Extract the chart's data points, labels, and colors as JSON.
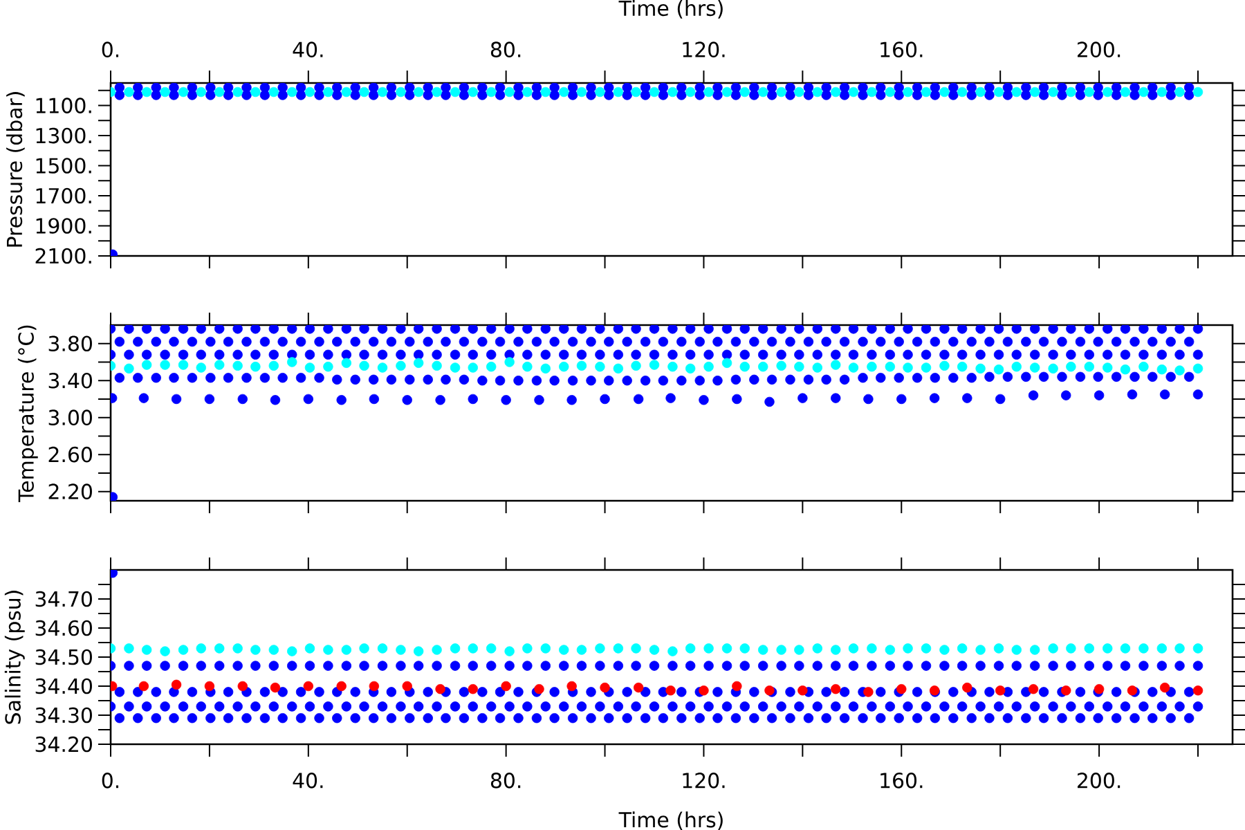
{
  "chart_data": [
    {
      "type": "scatter",
      "xlabel": "Time (hrs)",
      "ylabel": "Pressure (dbar)",
      "xlim": [
        0,
        227
      ],
      "xticks": [
        {
          "value": 0,
          "label": "0."
        },
        {
          "value": 20,
          "label": null
        },
        {
          "value": 40,
          "label": "40."
        },
        {
          "value": 60,
          "label": null
        },
        {
          "value": 80,
          "label": "80."
        },
        {
          "value": 100,
          "label": null
        },
        {
          "value": 120,
          "label": "120."
        },
        {
          "value": 140,
          "label": null
        },
        {
          "value": 160,
          "label": "160."
        },
        {
          "value": 180,
          "label": null
        },
        {
          "value": 200,
          "label": "200."
        },
        {
          "value": 220,
          "label": null
        }
      ],
      "ylim": [
        2100,
        950
      ],
      "yticks": [
        {
          "value": 1000,
          "label": null
        },
        {
          "value": 1100,
          "label": "1100."
        },
        {
          "value": 1200,
          "label": null
        },
        {
          "value": 1300,
          "label": "1300."
        },
        {
          "value": 1400,
          "label": null
        },
        {
          "value": 1500,
          "label": "1500."
        },
        {
          "value": 1600,
          "label": null
        },
        {
          "value": 1700,
          "label": "1700."
        },
        {
          "value": 1800,
          "label": null
        },
        {
          "value": 1900,
          "label": "1900."
        },
        {
          "value": 2000,
          "label": null
        },
        {
          "value": 2100,
          "label": "2100."
        }
      ],
      "marker": "circle",
      "series": [
        {
          "color": "#0000ff",
          "x": [
            0.4,
            1.8,
            5.5,
            9.2,
            12.8,
            16.5,
            20.2,
            23.8,
            27.5,
            31.2,
            34.8,
            38.5,
            42.2,
            45.8,
            49.5,
            53.2,
            56.8,
            60.5,
            64.2,
            67.8,
            71.5,
            75.2,
            78.8,
            82.5,
            86.2,
            89.8,
            93.5,
            97.2,
            100.8,
            104.5,
            108.2,
            111.8,
            115.5,
            119.2,
            122.8,
            126.5,
            130.2,
            133.8,
            137.5,
            141.2,
            144.8,
            148.5,
            152.2,
            155.8,
            159.5,
            163.2,
            166.8,
            170.5,
            174.2,
            177.8,
            181.5,
            185.2,
            188.8,
            192.5,
            196.2,
            199.8,
            203.5,
            207.2,
            210.8,
            214.5,
            218.2,
            1.8,
            5.5,
            9.2,
            12.8,
            16.5,
            20.2,
            23.8,
            27.5,
            31.2,
            34.8,
            38.5,
            42.2,
            45.8,
            49.5,
            53.2,
            56.8,
            60.5,
            64.2,
            67.8,
            71.5,
            75.2,
            78.8,
            82.5,
            86.2,
            89.8,
            93.5,
            97.2,
            100.8,
            104.5,
            108.2,
            111.8,
            115.5,
            119.2,
            122.8,
            126.5,
            130.2,
            133.8,
            137.5,
            141.2,
            144.8,
            148.5,
            152.2,
            155.8,
            159.5,
            163.2,
            166.8,
            170.5,
            174.2,
            177.8,
            181.5,
            185.2,
            188.8,
            192.5,
            196.2,
            199.8,
            203.5,
            207.2,
            210.8,
            214.5,
            218.2
          ],
          "values": [
            2090,
            980,
            980,
            980,
            980,
            980,
            980,
            980,
            980,
            980,
            980,
            980,
            980,
            980,
            980,
            980,
            980,
            980,
            980,
            980,
            980,
            980,
            980,
            980,
            980,
            980,
            980,
            980,
            980,
            980,
            980,
            980,
            980,
            980,
            980,
            980,
            980,
            980,
            980,
            980,
            980,
            980,
            980,
            980,
            980,
            980,
            980,
            980,
            980,
            980,
            980,
            980,
            980,
            980,
            980,
            980,
            980,
            980,
            980,
            980,
            980,
            1030,
            1030,
            1030,
            1030,
            1030,
            1030,
            1030,
            1030,
            1030,
            1030,
            1030,
            1030,
            1030,
            1030,
            1030,
            1030,
            1030,
            1030,
            1030,
            1030,
            1030,
            1030,
            1030,
            1030,
            1030,
            1030,
            1030,
            1030,
            1030,
            1030,
            1030,
            1030,
            1030,
            1030,
            1030,
            1030,
            1030,
            1030,
            1030,
            1030,
            1030,
            1030,
            1030,
            1030,
            1030,
            1030,
            1030,
            1030,
            1030,
            1030,
            1030,
            1030,
            1030,
            1030,
            1030,
            1030,
            1030,
            1030,
            1030,
            1030
          ]
        },
        {
          "color": "#00ffff",
          "x": [
            0,
            3.7,
            7.3,
            11,
            14.7,
            18.3,
            22,
            25.7,
            29.3,
            33,
            36.7,
            40.3,
            44,
            47.7,
            51.3,
            55,
            58.7,
            62.3,
            66,
            69.7,
            73.3,
            77,
            80.7,
            84.3,
            88,
            91.7,
            95.3,
            99,
            102.7,
            106.3,
            110,
            113.7,
            117.3,
            121,
            124.7,
            128.3,
            132,
            135.7,
            139.3,
            143,
            146.7,
            150.3,
            154,
            157.7,
            161.3,
            165,
            168.7,
            172.3,
            176,
            179.7,
            183.3,
            187,
            190.7,
            194.3,
            198,
            201.7,
            205.3,
            209,
            212.7,
            216.3,
            220
          ],
          "values": [
            1010,
            1010,
            1010,
            1010,
            1010,
            1010,
            1010,
            1010,
            1010,
            1010,
            1010,
            1010,
            1010,
            1010,
            1010,
            1010,
            1010,
            1010,
            1010,
            1010,
            1010,
            1010,
            1010,
            1010,
            1010,
            1010,
            1010,
            1010,
            1010,
            1010,
            1010,
            1010,
            1010,
            1010,
            1010,
            1010,
            1010,
            1010,
            1010,
            1010,
            1010,
            1010,
            1010,
            1010,
            1010,
            1010,
            1010,
            1010,
            1010,
            1010,
            1010,
            1010,
            1010,
            1010,
            1010,
            1010,
            1010,
            1010,
            1010,
            1010,
            1010
          ]
        }
      ]
    },
    {
      "type": "scatter",
      "ylabel": "Temperature (°C)",
      "tick_labels": "y",
      "xlim": [
        0,
        227
      ],
      "xticks": [
        0,
        20,
        40,
        60,
        80,
        100,
        120,
        140,
        160,
        180,
        200,
        220
      ],
      "ylim": [
        2.1,
        4.0
      ],
      "yticks": [
        {
          "value": 2.2,
          "label": "2.20"
        },
        {
          "value": 2.4,
          "label": null
        },
        {
          "value": 2.6,
          "label": "2.60"
        },
        {
          "value": 2.8,
          "label": null
        },
        {
          "value": 3.0,
          "label": "3.00"
        },
        {
          "value": 3.2,
          "label": null
        },
        {
          "value": 3.4,
          "label": "3.40"
        },
        {
          "value": 3.6,
          "label": null
        },
        {
          "value": 3.8,
          "label": "3.80"
        }
      ],
      "marker": "circle",
      "series": [
        {
          "color": "#0000ff",
          "x": [
            0.4,
            0.3,
            6.7,
            13.3,
            20,
            26.7,
            33.3,
            40,
            46.7,
            53.3,
            60,
            66.7,
            73.3,
            80,
            86.7,
            93.3,
            100,
            106.8,
            113.3,
            120,
            126.7,
            133.3,
            140,
            146.7,
            153.3,
            160,
            166.7,
            173.3,
            180,
            186.7,
            193.3,
            200,
            206.7,
            213.3,
            220,
            0,
            3.7,
            7.3,
            11,
            14.7,
            18.3,
            22,
            25.7,
            29.3,
            33,
            36.7,
            40.3,
            44,
            47.7,
            51.3,
            55,
            58.7,
            62.3,
            66,
            69.7,
            73.3,
            77,
            80.7,
            84.3,
            88,
            91.7,
            95.3,
            99,
            102.7,
            106.3,
            110,
            113.7,
            117.3,
            121,
            124.7,
            128.3,
            132,
            135.7,
            139.3,
            143,
            146.7,
            150.3,
            154,
            157.7,
            161.3,
            165,
            168.7,
            172.3,
            176,
            179.7,
            183.3,
            187,
            190.7,
            194.3,
            198,
            201.7,
            205.3,
            209,
            212.7,
            216.3,
            220,
            1.8,
            5.5,
            9.2,
            12.8,
            16.5,
            20.2,
            23.8,
            27.5,
            31.2,
            34.8,
            38.5,
            42.2,
            45.8,
            49.5,
            53.2,
            56.8,
            60.5,
            64.2,
            67.8,
            71.5,
            75.2,
            78.8,
            82.5,
            86.2,
            89.8,
            93.5,
            97.2,
            100.8,
            104.5,
            108.2,
            111.8,
            115.5,
            119.2,
            122.8,
            126.5,
            130.2,
            133.8,
            137.5,
            141.2,
            144.8,
            148.5,
            152.2,
            155.8,
            159.5,
            163.2,
            166.8,
            170.5,
            174.2,
            177.8,
            181.5,
            185.2,
            188.8,
            192.5,
            196.2,
            199.8,
            203.5,
            207.2,
            210.8,
            214.5,
            218.2,
            1.8,
            5.5,
            9.2,
            12.8,
            16.5,
            20.2,
            23.8,
            27.5,
            31.2,
            34.8,
            38.5,
            42.2,
            45.8,
            49.5,
            53.2,
            56.8,
            60.5,
            64.2,
            67.8,
            71.5,
            75.2,
            78.8,
            82.5,
            86.2,
            89.8,
            93.5,
            97.2,
            100.8,
            104.5,
            108.2,
            111.8,
            115.5,
            119.2,
            122.8,
            126.5,
            130.2,
            133.8,
            137.5,
            141.2,
            144.8,
            148.5,
            152.2,
            155.8,
            159.5,
            163.2,
            166.8,
            170.5,
            174.2,
            177.8,
            181.5,
            185.2,
            188.8,
            192.5,
            196.2,
            199.8,
            203.5,
            207.2,
            210.8,
            214.5,
            218.2,
            0,
            3.7,
            7.3,
            11,
            14.7,
            18.3,
            22,
            25.7,
            29.3,
            33,
            36.7,
            40.3,
            44,
            47.7,
            51.3,
            55,
            58.7,
            62.3,
            66,
            69.7,
            73.3,
            77,
            80.7,
            84.3,
            88,
            91.7,
            95.3,
            99,
            102.7,
            106.3,
            110,
            113.7,
            117.3,
            121,
            124.7,
            128.3,
            132,
            135.7,
            139.3,
            143,
            146.7,
            150.3,
            154,
            157.7,
            161.3,
            165,
            168.7,
            172.3,
            176,
            179.7,
            183.3,
            187,
            190.7,
            194.3,
            198,
            201.7,
            205.3,
            209,
            212.7,
            216.3,
            220
          ],
          "values": [
            2.14,
            3.21,
            3.21,
            3.2,
            3.2,
            3.2,
            3.19,
            3.2,
            3.19,
            3.2,
            3.19,
            3.19,
            3.2,
            3.19,
            3.19,
            3.19,
            3.2,
            3.2,
            3.21,
            3.19,
            3.2,
            3.17,
            3.21,
            3.21,
            3.2,
            3.2,
            3.21,
            3.21,
            3.2,
            3.24,
            3.24,
            3.24,
            3.25,
            3.25,
            3.25,
            3.96,
            3.96,
            3.96,
            3.96,
            3.96,
            3.96,
            3.96,
            3.96,
            3.96,
            3.96,
            3.96,
            3.96,
            3.96,
            3.96,
            3.96,
            3.96,
            3.96,
            3.96,
            3.96,
            3.96,
            3.96,
            3.96,
            3.96,
            3.96,
            3.96,
            3.96,
            3.96,
            3.96,
            3.96,
            3.96,
            3.96,
            3.96,
            3.96,
            3.96,
            3.96,
            3.96,
            3.96,
            3.96,
            3.96,
            3.96,
            3.96,
            3.96,
            3.96,
            3.96,
            3.96,
            3.96,
            3.96,
            3.96,
            3.96,
            3.96,
            3.96,
            3.96,
            3.96,
            3.96,
            3.96,
            3.96,
            3.96,
            3.96,
            3.96,
            3.96,
            3.96,
            3.43,
            3.43,
            3.43,
            3.43,
            3.43,
            3.43,
            3.43,
            3.43,
            3.43,
            3.43,
            3.43,
            3.43,
            3.41,
            3.41,
            3.41,
            3.41,
            3.41,
            3.41,
            3.41,
            3.41,
            3.4,
            3.4,
            3.4,
            3.4,
            3.4,
            3.4,
            3.4,
            3.4,
            3.4,
            3.4,
            3.4,
            3.4,
            3.4,
            3.4,
            3.41,
            3.41,
            3.41,
            3.41,
            3.41,
            3.41,
            3.41,
            3.43,
            3.43,
            3.43,
            3.43,
            3.43,
            3.43,
            3.43,
            3.44,
            3.44,
            3.44,
            3.44,
            3.44,
            3.44,
            3.44,
            3.44,
            3.44,
            3.44,
            3.44,
            3.44,
            3.82,
            3.82,
            3.82,
            3.82,
            3.82,
            3.82,
            3.82,
            3.82,
            3.82,
            3.82,
            3.82,
            3.82,
            3.82,
            3.82,
            3.82,
            3.82,
            3.82,
            3.82,
            3.82,
            3.82,
            3.82,
            3.82,
            3.82,
            3.82,
            3.82,
            3.82,
            3.82,
            3.82,
            3.82,
            3.82,
            3.82,
            3.82,
            3.82,
            3.82,
            3.82,
            3.82,
            3.82,
            3.82,
            3.82,
            3.82,
            3.82,
            3.82,
            3.82,
            3.82,
            3.82,
            3.82,
            3.82,
            3.82,
            3.82,
            3.82,
            3.82,
            3.82,
            3.82,
            3.82,
            3.82,
            3.82,
            3.82,
            3.82,
            3.82,
            3.82,
            3.68,
            3.68,
            3.68,
            3.68,
            3.68,
            3.68,
            3.68,
            3.68,
            3.68,
            3.68,
            3.68,
            3.68,
            3.68,
            3.68,
            3.68,
            3.68,
            3.68,
            3.68,
            3.68,
            3.68,
            3.68,
            3.68,
            3.68,
            3.68,
            3.68,
            3.68,
            3.68,
            3.68,
            3.68,
            3.68,
            3.68,
            3.68,
            3.68,
            3.68,
            3.68,
            3.68,
            3.68,
            3.68,
            3.68,
            3.68,
            3.68,
            3.68,
            3.68,
            3.68,
            3.68,
            3.68,
            3.68,
            3.68,
            3.68,
            3.68,
            3.68,
            3.68,
            3.68,
            3.68,
            3.68,
            3.68,
            3.68,
            3.68,
            3.68,
            3.68,
            3.68
          ]
        },
        {
          "color": "#00ffff",
          "x": [
            0,
            3.7,
            7.3,
            11,
            14.7,
            18.3,
            22,
            25.7,
            29.3,
            33,
            36.7,
            40.3,
            44,
            47.7,
            51.3,
            55,
            58.7,
            62.3,
            66,
            69.7,
            73.3,
            77,
            80.7,
            84.3,
            88,
            91.7,
            95.3,
            99,
            102.7,
            106.3,
            110,
            113.7,
            117.3,
            121,
            124.7,
            128.3,
            132,
            135.7,
            139.3,
            143,
            146.7,
            150.3,
            154,
            157.7,
            161.3,
            165,
            168.7,
            172.3,
            176,
            179.7,
            183.3,
            187,
            190.7,
            194.3,
            198,
            201.7,
            205.3,
            209,
            212.7,
            216.3,
            220
          ],
          "values": [
            3.56,
            3.53,
            3.57,
            3.57,
            3.57,
            3.54,
            3.57,
            3.56,
            3.55,
            3.56,
            3.6,
            3.54,
            3.55,
            3.59,
            3.56,
            3.54,
            3.56,
            3.59,
            3.56,
            3.54,
            3.54,
            3.55,
            3.6,
            3.55,
            3.53,
            3.55,
            3.56,
            3.55,
            3.53,
            3.56,
            3.57,
            3.55,
            3.53,
            3.55,
            3.59,
            3.55,
            3.55,
            3.56,
            3.55,
            3.54,
            3.57,
            3.54,
            3.55,
            3.55,
            3.54,
            3.54,
            3.56,
            3.55,
            3.53,
            3.52,
            3.55,
            3.54,
            3.53,
            3.55,
            3.55,
            3.54,
            3.52,
            3.55,
            3.52,
            3.51,
            3.53
          ]
        }
      ]
    },
    {
      "type": "scatter",
      "xlabel": "Time (hrs)",
      "ylabel": "Salinity (psu)",
      "xlim": [
        0,
        227
      ],
      "xticks": [
        {
          "value": 0,
          "label": "0."
        },
        {
          "value": 20,
          "label": null
        },
        {
          "value": 40,
          "label": "40."
        },
        {
          "value": 60,
          "label": null
        },
        {
          "value": 80,
          "label": "80."
        },
        {
          "value": 100,
          "label": null
        },
        {
          "value": 120,
          "label": "120."
        },
        {
          "value": 140,
          "label": null
        },
        {
          "value": 160,
          "label": "160."
        },
        {
          "value": 180,
          "label": null
        },
        {
          "value": 200,
          "label": "200."
        },
        {
          "value": 220,
          "label": null
        }
      ],
      "ylim": [
        34.2,
        34.8
      ],
      "yticks": [
        {
          "value": 34.2,
          "label": "34.20"
        },
        {
          "value": 34.25,
          "label": null
        },
        {
          "value": 34.3,
          "label": "34.30"
        },
        {
          "value": 34.35,
          "label": null
        },
        {
          "value": 34.4,
          "label": "34.40"
        },
        {
          "value": 34.45,
          "label": null
        },
        {
          "value": 34.5,
          "label": "34.50"
        },
        {
          "value": 34.55,
          "label": null
        },
        {
          "value": 34.6,
          "label": "34.60"
        },
        {
          "value": 34.65,
          "label": null
        },
        {
          "value": 34.7,
          "label": "34.70"
        },
        {
          "value": 34.75,
          "label": null
        }
      ],
      "marker": "circle",
      "series": [
        {
          "color": "#0000ff",
          "x": [
            0.4,
            0,
            3.7,
            7.3,
            11,
            14.7,
            18.3,
            22,
            25.7,
            29.3,
            33,
            36.7,
            40.3,
            44,
            47.7,
            51.3,
            55,
            58.7,
            62.3,
            66,
            69.7,
            73.3,
            77,
            80.7,
            84.3,
            88,
            91.7,
            95.3,
            99,
            102.7,
            106.3,
            110,
            113.7,
            117.3,
            121,
            124.7,
            128.3,
            132,
            135.7,
            139.3,
            143,
            146.7,
            150.3,
            154,
            157.7,
            161.3,
            165,
            168.7,
            172.3,
            176,
            179.7,
            183.3,
            187,
            190.7,
            194.3,
            198,
            201.7,
            205.3,
            209,
            212.7,
            216.3,
            220,
            1.8,
            5.5,
            9.2,
            12.8,
            16.5,
            20.2,
            23.8,
            27.5,
            31.2,
            34.8,
            38.5,
            42.2,
            45.8,
            49.5,
            53.2,
            56.8,
            60.5,
            64.2,
            67.8,
            71.5,
            75.2,
            78.8,
            82.5,
            86.2,
            89.8,
            93.5,
            97.2,
            100.8,
            104.5,
            108.2,
            111.8,
            115.5,
            119.2,
            122.8,
            126.5,
            130.2,
            133.8,
            137.5,
            141.2,
            144.8,
            148.5,
            152.2,
            155.8,
            159.5,
            163.2,
            166.8,
            170.5,
            174.2,
            177.8,
            181.5,
            185.2,
            188.8,
            192.5,
            196.2,
            199.8,
            203.5,
            207.2,
            210.8,
            214.5,
            218.2,
            0,
            3.7,
            7.3,
            11,
            14.7,
            18.3,
            22,
            25.7,
            29.3,
            33,
            36.7,
            40.3,
            44,
            47.7,
            51.3,
            55,
            58.7,
            62.3,
            66,
            69.7,
            73.3,
            77,
            80.7,
            84.3,
            88,
            91.7,
            95.3,
            99,
            102.7,
            106.3,
            110,
            113.7,
            117.3,
            121,
            124.7,
            128.3,
            132,
            135.7,
            139.3,
            143,
            146.7,
            150.3,
            154,
            157.7,
            161.3,
            165,
            168.7,
            172.3,
            176,
            179.7,
            183.3,
            187,
            190.7,
            194.3,
            198,
            201.7,
            205.3,
            209,
            212.7,
            216.3,
            220,
            1.8,
            5.5,
            9.2,
            12.8,
            16.5,
            20.2,
            23.8,
            27.5,
            31.2,
            34.8,
            38.5,
            42.2,
            45.8,
            49.5,
            53.2,
            56.8,
            60.5,
            64.2,
            67.8,
            71.5,
            75.2,
            78.8,
            82.5,
            86.2,
            89.8,
            93.5,
            97.2,
            100.8,
            104.5,
            108.2,
            111.8,
            115.5,
            119.2,
            122.8,
            126.5,
            130.2,
            133.8,
            137.5,
            141.2,
            144.8,
            148.5,
            152.2,
            155.8,
            159.5,
            163.2,
            166.8,
            170.5,
            174.2,
            177.8,
            181.5,
            185.2,
            188.8,
            192.5,
            196.2,
            199.8,
            203.5,
            207.2,
            210.8,
            214.5,
            218.2
          ],
          "values": [
            34.79,
            34.47,
            34.47,
            34.47,
            34.47,
            34.47,
            34.47,
            34.47,
            34.47,
            34.47,
            34.47,
            34.47,
            34.47,
            34.47,
            34.47,
            34.47,
            34.47,
            34.47,
            34.47,
            34.47,
            34.47,
            34.47,
            34.47,
            34.47,
            34.47,
            34.47,
            34.47,
            34.47,
            34.47,
            34.47,
            34.47,
            34.47,
            34.47,
            34.47,
            34.47,
            34.47,
            34.47,
            34.47,
            34.47,
            34.47,
            34.47,
            34.47,
            34.47,
            34.47,
            34.47,
            34.47,
            34.47,
            34.47,
            34.47,
            34.47,
            34.47,
            34.47,
            34.47,
            34.47,
            34.47,
            34.47,
            34.47,
            34.47,
            34.47,
            34.47,
            34.47,
            34.47,
            34.38,
            34.38,
            34.38,
            34.38,
            34.38,
            34.38,
            34.38,
            34.38,
            34.38,
            34.38,
            34.38,
            34.38,
            34.38,
            34.38,
            34.38,
            34.38,
            34.38,
            34.38,
            34.38,
            34.38,
            34.38,
            34.38,
            34.38,
            34.38,
            34.38,
            34.38,
            34.38,
            34.38,
            34.38,
            34.38,
            34.38,
            34.38,
            34.38,
            34.38,
            34.38,
            34.38,
            34.38,
            34.38,
            34.38,
            34.38,
            34.38,
            34.38,
            34.38,
            34.38,
            34.38,
            34.38,
            34.38,
            34.38,
            34.38,
            34.38,
            34.38,
            34.38,
            34.38,
            34.38,
            34.38,
            34.38,
            34.38,
            34.38,
            34.38,
            34.38,
            34.33,
            34.33,
            34.33,
            34.33,
            34.33,
            34.33,
            34.33,
            34.33,
            34.33,
            34.33,
            34.33,
            34.33,
            34.33,
            34.33,
            34.33,
            34.33,
            34.33,
            34.33,
            34.33,
            34.33,
            34.33,
            34.33,
            34.33,
            34.33,
            34.33,
            34.33,
            34.33,
            34.33,
            34.33,
            34.33,
            34.33,
            34.33,
            34.33,
            34.33,
            34.33,
            34.33,
            34.33,
            34.33,
            34.33,
            34.33,
            34.33,
            34.33,
            34.33,
            34.33,
            34.33,
            34.33,
            34.33,
            34.33,
            34.33,
            34.33,
            34.33,
            34.33,
            34.33,
            34.33,
            34.33,
            34.33,
            34.33,
            34.33,
            34.33,
            34.33,
            34.33,
            34.29,
            34.29,
            34.29,
            34.29,
            34.29,
            34.29,
            34.29,
            34.29,
            34.29,
            34.29,
            34.29,
            34.29,
            34.29,
            34.29,
            34.29,
            34.29,
            34.29,
            34.29,
            34.29,
            34.29,
            34.29,
            34.29,
            34.29,
            34.29,
            34.29,
            34.29,
            34.29,
            34.29,
            34.29,
            34.29,
            34.29,
            34.29,
            34.29,
            34.29,
            34.29,
            34.29,
            34.29,
            34.29,
            34.29,
            34.29,
            34.29,
            34.29,
            34.29,
            34.29,
            34.29,
            34.29,
            34.29,
            34.29,
            34.29,
            34.29,
            34.29,
            34.29,
            34.29,
            34.29,
            34.29,
            34.29,
            34.29,
            34.29,
            34.29,
            34.29
          ]
        },
        {
          "color": "#00ffff",
          "x": [
            0,
            3.7,
            7.3,
            11,
            14.7,
            18.3,
            22,
            25.7,
            29.3,
            33,
            36.7,
            40.3,
            44,
            47.7,
            51.3,
            55,
            58.7,
            62.3,
            66,
            69.7,
            73.3,
            77,
            80.7,
            84.3,
            88,
            91.7,
            95.3,
            99,
            102.7,
            106.3,
            110,
            113.7,
            117.3,
            121,
            124.7,
            128.3,
            132,
            135.7,
            139.3,
            143,
            146.7,
            150.3,
            154,
            157.7,
            161.3,
            165,
            168.7,
            172.3,
            176,
            179.7,
            183.3,
            187,
            190.7,
            194.3,
            198,
            201.7,
            205.3,
            209,
            212.7,
            216.3,
            220
          ],
          "values": [
            34.53,
            34.53,
            34.525,
            34.52,
            34.525,
            34.53,
            34.53,
            34.53,
            34.525,
            34.525,
            34.52,
            34.53,
            34.525,
            34.525,
            34.53,
            34.53,
            34.525,
            34.52,
            34.525,
            34.53,
            34.53,
            34.53,
            34.52,
            34.53,
            34.53,
            34.525,
            34.525,
            34.53,
            34.53,
            34.53,
            34.525,
            34.52,
            34.53,
            34.53,
            34.53,
            34.53,
            34.525,
            34.525,
            34.525,
            34.53,
            34.525,
            34.53,
            34.53,
            34.525,
            34.53,
            34.53,
            34.525,
            34.53,
            34.525,
            34.53,
            34.525,
            34.525,
            34.53,
            34.53,
            34.53,
            34.53,
            34.53,
            34.53,
            34.53,
            34.53,
            34.53
          ]
        },
        {
          "color": "#ff0000",
          "x": [
            0.3,
            6.7,
            13.3,
            20,
            26.7,
            33.3,
            40,
            46.7,
            53.3,
            60,
            66.7,
            73.3,
            80,
            86.7,
            93.3,
            100,
            106.8,
            113.3,
            120,
            126.7,
            133.3,
            140,
            146.7,
            153.3,
            160,
            166.7,
            173.3,
            180,
            186.7,
            193.3,
            200,
            206.7,
            213.3,
            220
          ],
          "values": [
            34.4,
            34.4,
            34.405,
            34.4,
            34.4,
            34.395,
            34.4,
            34.4,
            34.4,
            34.4,
            34.39,
            34.39,
            34.4,
            34.39,
            34.4,
            34.395,
            34.395,
            34.385,
            34.385,
            34.4,
            34.385,
            34.385,
            34.39,
            34.38,
            34.39,
            34.385,
            34.395,
            34.385,
            34.39,
            34.385,
            34.39,
            34.385,
            34.395,
            34.385
          ]
        }
      ]
    }
  ]
}
